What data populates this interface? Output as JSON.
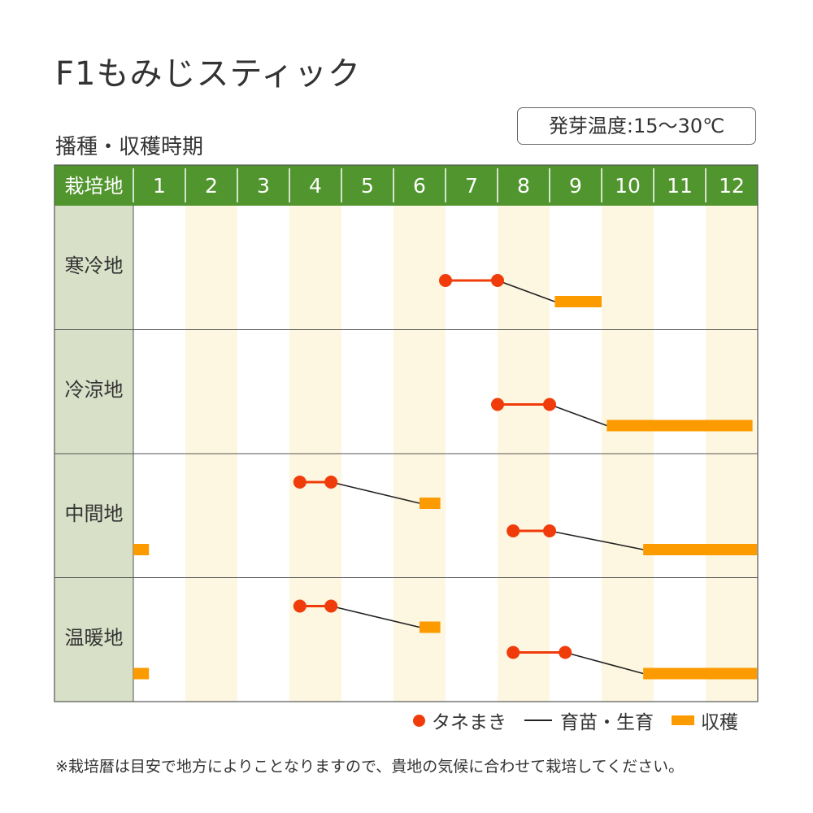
{
  "title": "F1もみじスティック",
  "subtitle": "播種・収穫時期",
  "germination": "発芽温度:15〜30℃",
  "colors": {
    "header_green": "#51952e",
    "label_bg": "#d9e0c8",
    "stripe": "#fdf6e0",
    "sowing": "#f03c0a",
    "harvest": "#fb9b00",
    "growth": "#222222"
  },
  "chart_data": {
    "type": "table",
    "header_label": "栽培地",
    "months": [
      "1",
      "2",
      "3",
      "4",
      "5",
      "6",
      "7",
      "8",
      "9",
      "10",
      "11",
      "12"
    ],
    "regions": [
      {
        "name": "寒冷地",
        "schedules": [
          {
            "sow": [
              7.0,
              8.0
            ],
            "harvest": [
              9.1,
              10.0
            ]
          }
        ]
      },
      {
        "name": "冷涼地",
        "schedules": [
          {
            "sow": [
              8.0,
              9.0
            ],
            "harvest": [
              10.1,
              12.9
            ]
          }
        ]
      },
      {
        "name": "中間地",
        "schedules": [
          {
            "sow": [
              4.2,
              4.8
            ],
            "harvest": [
              6.5,
              6.9
            ]
          },
          {
            "sow": [
              8.3,
              9.0
            ],
            "harvest": [
              10.8,
              13.0
            ]
          },
          {
            "harvest": [
              1.0,
              1.3
            ]
          }
        ]
      },
      {
        "name": "温暖地",
        "schedules": [
          {
            "sow": [
              4.2,
              4.8
            ],
            "harvest": [
              6.5,
              6.9
            ]
          },
          {
            "sow": [
              8.3,
              9.3
            ],
            "harvest": [
              10.8,
              13.0
            ]
          },
          {
            "harvest": [
              1.0,
              1.3
            ]
          }
        ]
      }
    ]
  },
  "legend": {
    "sowing": "タネまき",
    "growth": "育苗・生育",
    "harvest": "収穫"
  },
  "note": "※栽培暦は目安で地方によりことなりますので、貴地の気候に合わせて栽培してください。"
}
